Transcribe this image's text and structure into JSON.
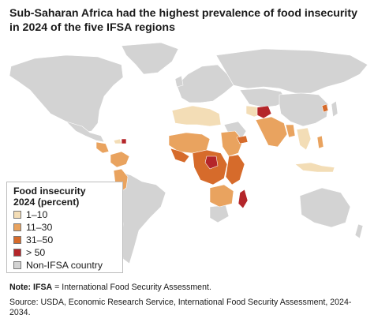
{
  "title": "Sub-Saharan Africa had the highest prevalence of food insecurity in 2024 of the five IFSA regions",
  "legend": {
    "title_line1": "Food insecurity",
    "title_line2": "2024 (percent)",
    "items": [
      {
        "label": "1–10",
        "color": "#f3ddb6"
      },
      {
        "label": "11–30",
        "color": "#e9a35f"
      },
      {
        "label": "31–50",
        "color": "#d66b2b"
      },
      {
        "label": "> 50",
        "color": "#b4262a"
      },
      {
        "label": "Non-IFSA country",
        "color": "#d3d3d3"
      }
    ]
  },
  "colors": {
    "land_non_ifsa": "#d3d3d3",
    "border": "#ffffff",
    "cat_1_10": "#f3ddb6",
    "cat_11_30": "#e9a35f",
    "cat_31_50": "#d66b2b",
    "cat_gt_50": "#b4262a"
  },
  "note": {
    "prefix": "Note:",
    "term": "IFSA",
    "text": " = International Food Security Assessment."
  },
  "source": "Source: USDA, Economic Research Service, International Food Security Assessment, 2024-2034."
}
